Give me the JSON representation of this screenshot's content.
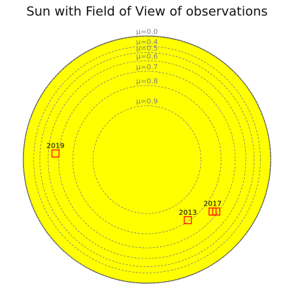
{
  "chart_data": {
    "type": "scatter",
    "title": "Sun with Field of View of observations",
    "colors": {
      "disk_fill": "#ffff00",
      "disk_edge": "#444444",
      "mu_circle": "#808080",
      "fov_box": "#ff0000",
      "fov_label": "#000000"
    },
    "mu_contours": [
      {
        "value": 0.0,
        "label": "μ=0.0"
      },
      {
        "value": 0.4,
        "label": "μ=0.4"
      },
      {
        "value": 0.5,
        "label": "μ=0.5"
      },
      {
        "value": 0.6,
        "label": "μ=0.6"
      },
      {
        "value": 0.7,
        "label": "μ=0.7"
      },
      {
        "value": 0.8,
        "label": "μ=0.8"
      },
      {
        "value": 0.9,
        "label": "μ=0.9"
      }
    ],
    "observations": [
      {
        "label": "2019",
        "x": -0.74,
        "y": 0.05,
        "show_label": true
      },
      {
        "label": "2013",
        "x": 0.33,
        "y": -0.49,
        "show_label": true
      },
      {
        "label": "2017",
        "x": 0.53,
        "y": -0.42,
        "show_label": true
      },
      {
        "label": "2017",
        "x": 0.56,
        "y": -0.42,
        "show_label": false
      }
    ]
  }
}
